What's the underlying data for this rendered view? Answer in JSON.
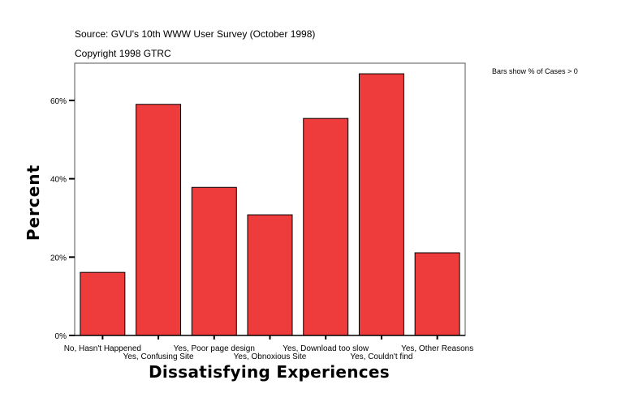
{
  "chart_data": {
    "type": "bar",
    "title": "Source: GVU's 10th WWW User Survey (October 1998)",
    "subtitle": "Copyright 1998 GTRC",
    "annotation": "Bars show % of Cases > 0",
    "xlabel": "Dissatisfying Experiences",
    "ylabel": "Percent",
    "categories": [
      "No, Hasn't Happened",
      "Yes, Confusing Site",
      "Yes, Poor page design",
      "Yes, Obnoxious Site",
      "Yes, Download too slow",
      "Yes, Couldn't find",
      "Yes, Other Reasons"
    ],
    "values": [
      16.1,
      59.0,
      37.8,
      30.8,
      55.4,
      66.8,
      21.1
    ],
    "yticks": [
      0,
      20,
      40,
      60
    ],
    "ytick_labels": [
      "0%",
      "20%",
      "40%",
      "60%"
    ],
    "ylim": [
      0,
      69.5
    ],
    "grid": false,
    "bar_color": "#ee3b3b"
  }
}
